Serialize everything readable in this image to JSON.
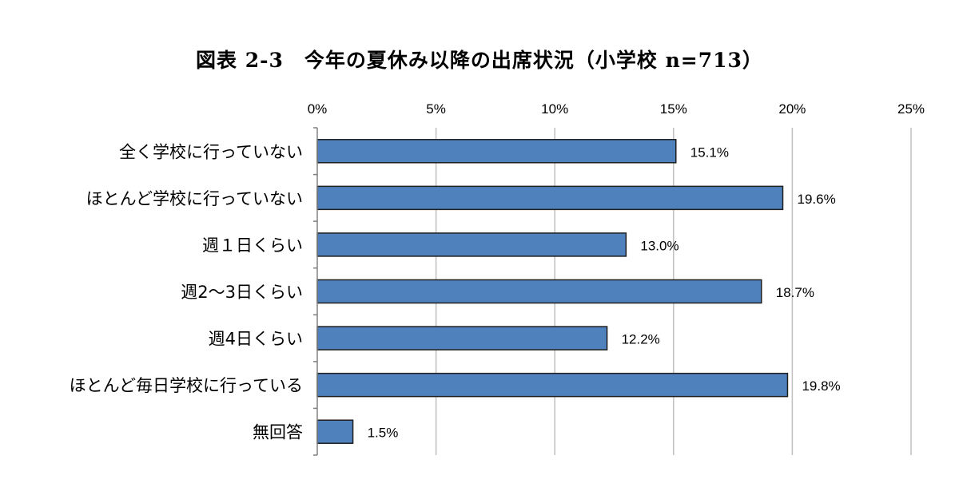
{
  "chart_data": {
    "type": "bar",
    "orientation": "horizontal",
    "title": "図表 2-3　今年の夏休み以降の出席状況（小学校 n=713）",
    "categories": [
      "全く学校に行っていない",
      "ほとんど学校に行っていない",
      "週１日くらい",
      "週2～3日くらい",
      "週4日くらい",
      "ほとんど毎日学校に行っている",
      "無回答"
    ],
    "values": [
      15.1,
      19.6,
      13.0,
      18.7,
      12.2,
      19.8,
      1.5
    ],
    "value_labels": [
      "15.1%",
      "19.6%",
      "13.0%",
      "18.7%",
      "12.2%",
      "19.8%",
      "1.5%"
    ],
    "xlim": [
      0,
      25
    ],
    "xticks": [
      0,
      5,
      10,
      15,
      20,
      25
    ],
    "xtick_labels": [
      "0%",
      "5%",
      "10%",
      "15%",
      "20%",
      "25%"
    ],
    "xaxis_position": "top",
    "grid": true,
    "bar_color": "#4f81bd",
    "bar_edge_color": "#1f1f1f",
    "grid_color": "#bfbfbf"
  }
}
